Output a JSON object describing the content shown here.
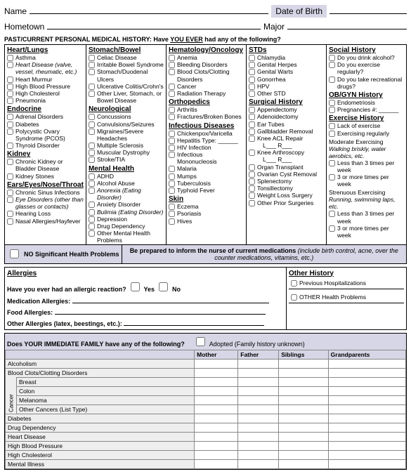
{
  "header": {
    "name_label": "Name",
    "dob_label": "Date of Birth",
    "hometown_label": "Hometown",
    "major_label": "Major"
  },
  "past_header": "PAST/CURRENT PERSONAL MEDICAL HISTORY: Have",
  "past_header_u": "YOU EVER",
  "past_header_end": "had any of the following?",
  "col1": {
    "s1_title": "Heart/Lungs",
    "s1": [
      "Asthma",
      "Heart Disease (valve, vessel, rheumatic, etc.)",
      "Heart Murmur",
      "High Blood Pressure",
      "High Cholesterol",
      "Pneumonia"
    ],
    "s2_title": "Endocrine",
    "s2": [
      "Adrenal Disorders",
      "Diabetes",
      "Polycystic Ovary Syndrome (PCOS)",
      "Thyroid Disorder"
    ],
    "s3_title": "Kidney",
    "s3": [
      "Chronic Kidney or Bladder Disease",
      "Kidney Stones"
    ],
    "s4_title": "Ears/Eyes/Nose/Throat",
    "s4": [
      "Chronic Sinus Infections",
      "Eye Disorders (other than glasses or contacts)",
      "Hearing Loss",
      "Nasal Allergies/Hayfever"
    ]
  },
  "col2": {
    "s1_title": "Stomach/Bowel",
    "s1": [
      "Celiac Disease",
      "Irritable Bowel Syndrome",
      "Stomach/Duodenal Ulcers",
      "Ulcerative Colitis/Crohn's",
      "Other Liver, Stomach, or Bowel Disease"
    ],
    "s2_title": "Neurological",
    "s2": [
      "Concussions",
      "Convulsions/Seizures",
      "Migraines/Severe Headaches",
      "Multiple Sclerosis",
      "Muscular Dystrophy",
      "Stroke/TIA"
    ],
    "s3_title": "Mental Health",
    "s3": [
      "ADHD",
      "Alcohol Abuse",
      "Anorexia (Eating Disorder)",
      "Anxiety Disorder",
      "Bulimia (Eating Disorder)",
      "Depression",
      "Drug Dependency",
      "Other Mental Health Problems"
    ]
  },
  "col3": {
    "s1_title": "Hematology/Oncology",
    "s1": [
      "Anemia",
      "Bleeding Disorders",
      "Blood Clots/Clotting Disorders",
      "Cancer",
      "Radiation Therapy"
    ],
    "s2_title": "Orthopedics",
    "s2": [
      "Arthritis",
      "Fractures/Broken Bones"
    ],
    "s3_title": "Infectious Diseases",
    "s3": [
      "Chickenpox/Varicella",
      "Hepatitis Type: ______",
      "HIV Infection",
      "Infectious Mononucleosis",
      "Malaria",
      "Mumps",
      "Tuberculosis",
      "Typhoid Fever"
    ],
    "s4_title": "Skin",
    "s4": [
      "Eczema",
      "Psoriasis",
      "Hives"
    ]
  },
  "col4": {
    "s1_title": "STDs",
    "s1": [
      "Chlamydia",
      "Genital Herpes",
      "Genital Warts",
      "Gonorrhea",
      "HPV",
      "Other STD"
    ],
    "s2_title": "Surgical History",
    "s2": [
      "Appendectomy",
      "Adenoidectomy",
      "Ear Tubes",
      "Gallbladder Removal",
      "Knee ACL Repair",
      "  L___ R___",
      "Knee Arthroscopy",
      "  L___ R___",
      "Organ Transplant",
      "Ovarian Cyst Removal",
      "Splenectomy",
      "Tonsillectomy",
      "Weight Loss Surgery",
      "Other Prior Surgeries"
    ]
  },
  "col5": {
    "s1_title": "Social History",
    "s1": [
      "Do you drink alcohol?",
      "Do you exercise regularly?",
      "Do you take recreational drugs?"
    ],
    "s2_title": "OB/GYN History",
    "s2": [
      "Endometriosis",
      "Pregnancies #: ______"
    ],
    "s3_title": "Exercise History",
    "s3": [
      "Lack of exercise",
      "Exercising regularly"
    ],
    "mod_title": "Moderate Exercising",
    "mod_sub": "Walking briskly, water aerobics, etc.",
    "mod": [
      "Less than 3 times per week",
      "3 or more times per week"
    ],
    "str_title": "Strenuous Exercising",
    "str_sub": "Running, swimming laps, etc.",
    "str": [
      "Less than 3 times per week",
      "3 or more times per week"
    ]
  },
  "nosig": "NO Significant Health Problems",
  "note_bold": "Be prepared to inform the nurse of current medications",
  "note_ital": "(include birth control, acne, over the counter medications, vitamins, etc.)",
  "allergies": {
    "title": "Allergies",
    "q": "Have you ever had an allergic reaction?",
    "yes": "Yes",
    "no": "No",
    "med": "Medication Allergies:",
    "food": "Food Allergies:",
    "other": "Other Allergies (latex, beestings, etc.):"
  },
  "other_hist": {
    "title": "Other History",
    "prev": "Previous Hospitalizations",
    "health": "OTHER Health Problems"
  },
  "family": {
    "q": "Does YOUR IMMEDIATE FAMILY have any of the following?",
    "adopted": "Adopted (Family history unknown)",
    "cols": [
      "",
      "Mother",
      "Father",
      "Siblings",
      "Grandparents"
    ],
    "rows": [
      "Alcoholism",
      "Blood Clots/Clotting Disorders"
    ],
    "cancer_label": "Cancer",
    "cancer_rows": [
      "Breast",
      "Colon",
      "Melanoma",
      "Other Cancers (List Type)"
    ],
    "rows2": [
      "Diabetes",
      "Drug Dependency",
      "Heart Disease",
      "High Blood Pressure",
      "High Cholesterol",
      "Mental Illness"
    ]
  }
}
